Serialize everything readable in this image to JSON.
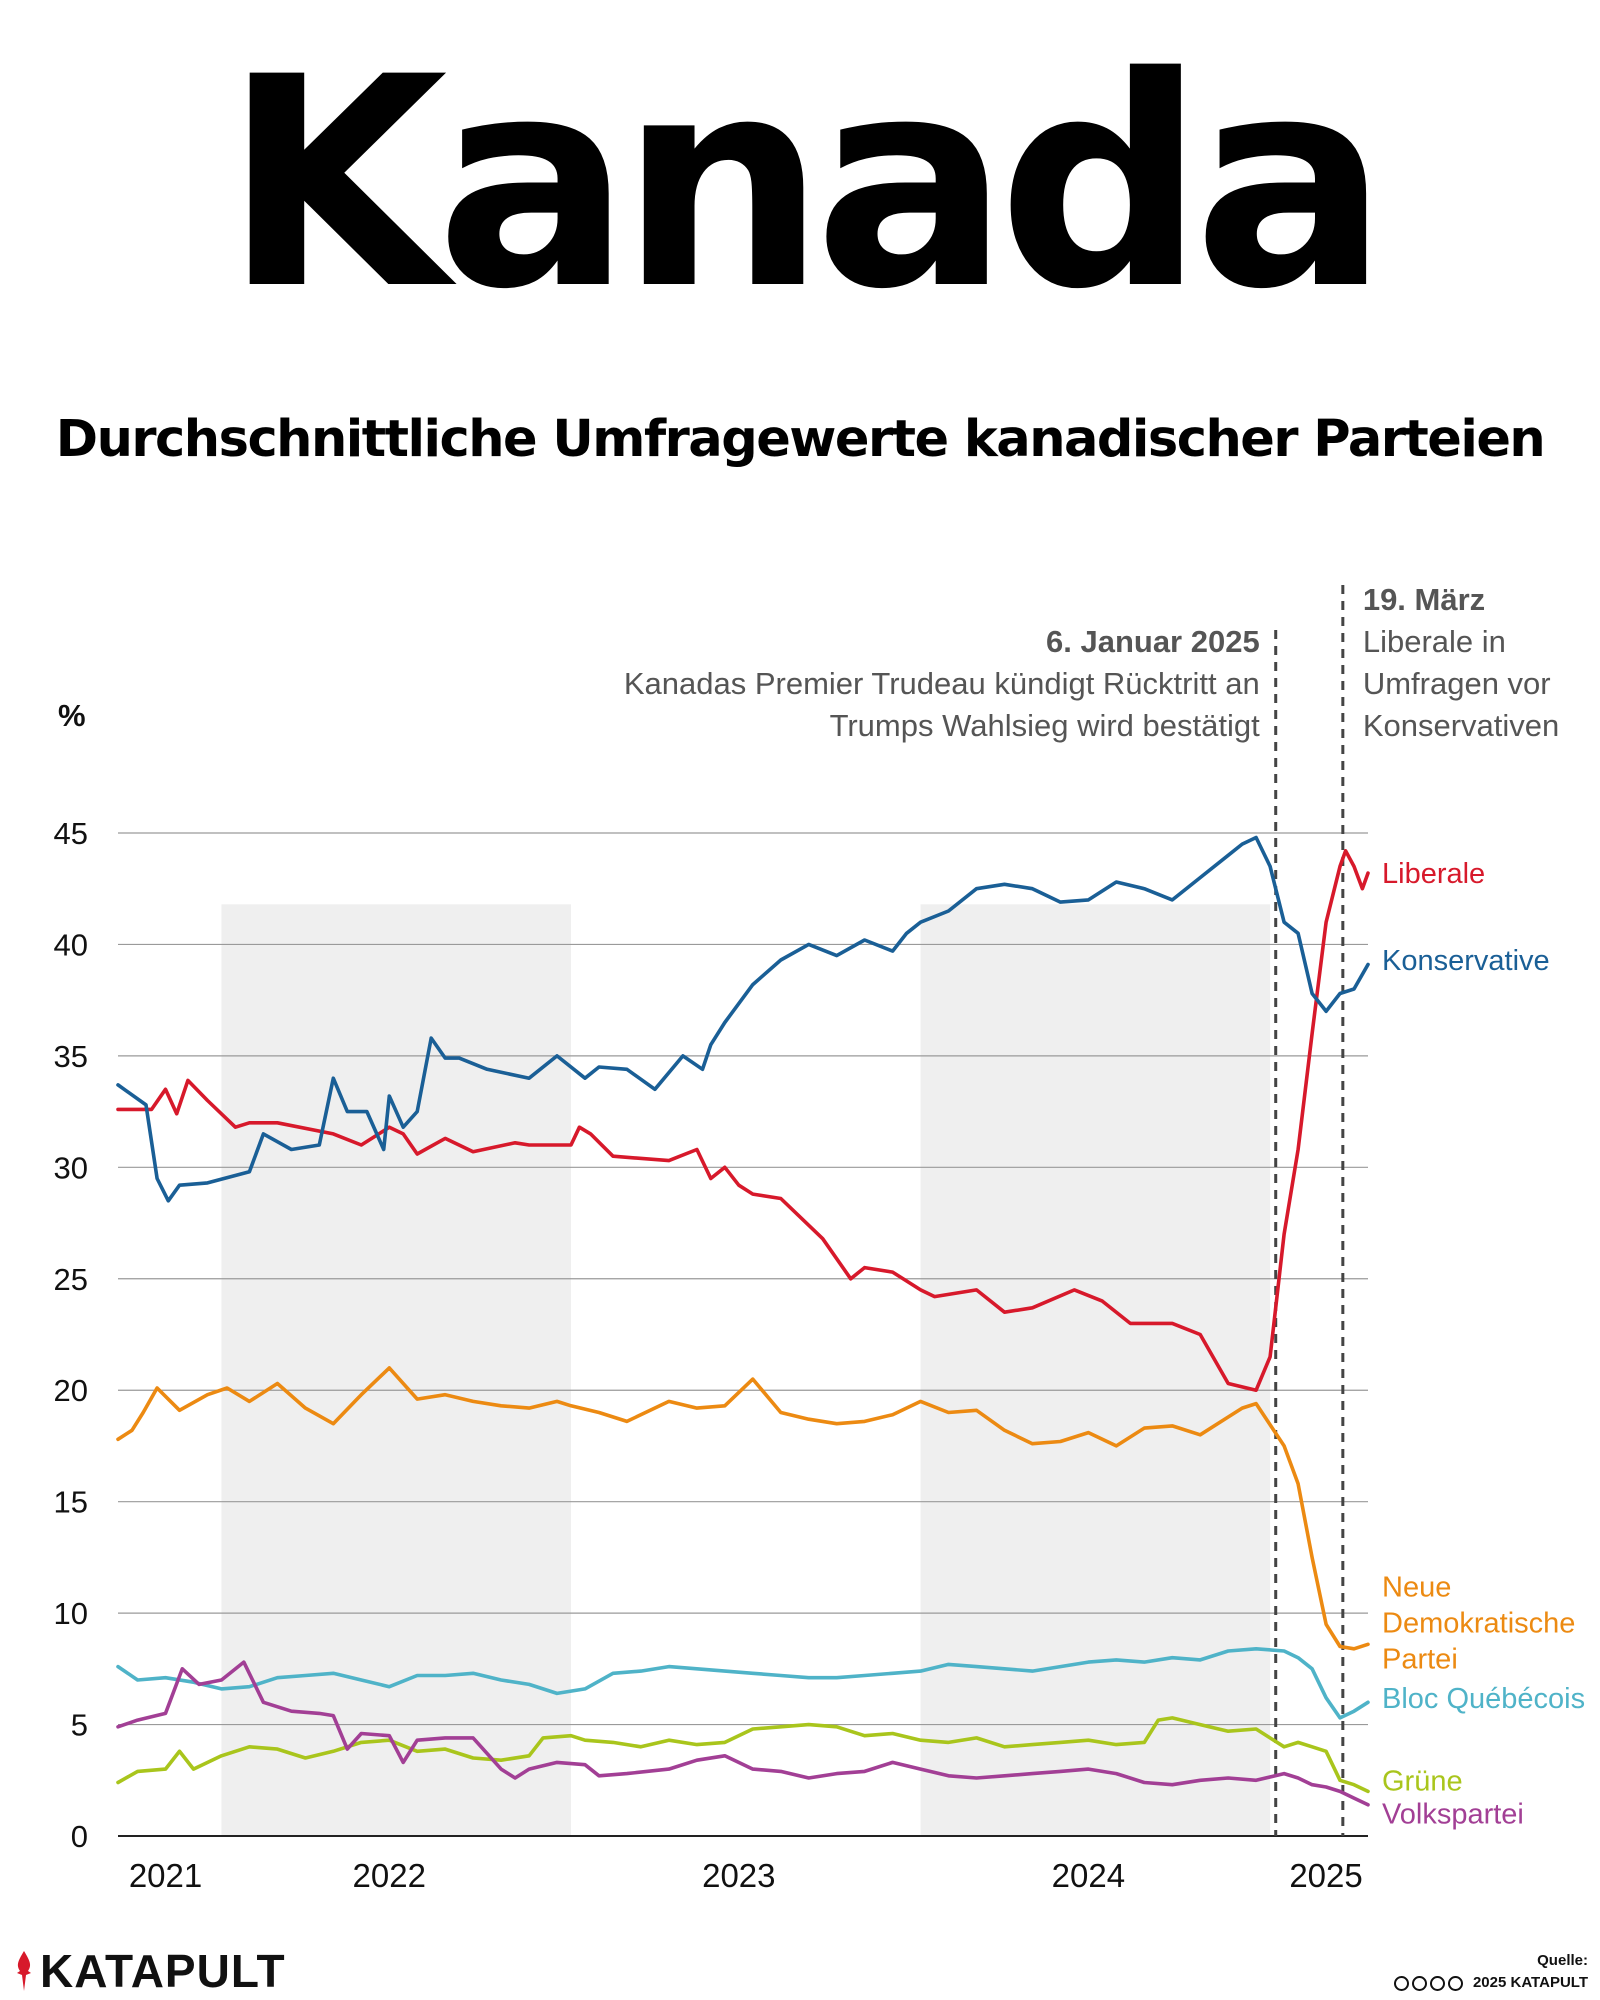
{
  "title": "Kanada",
  "subtitle": "Durchschnittliche Umfragewerte kanadischer Parteien",
  "brand": "KATAPULT",
  "source_label": "Quelle:",
  "copyright": "2025 KATAPULT",
  "chart_data": {
    "type": "line",
    "ylabel": "%",
    "ylim": [
      0,
      45
    ],
    "yticks": [
      0,
      5,
      10,
      15,
      20,
      25,
      30,
      35,
      40,
      45
    ],
    "xlim": [
      2020.83,
      2025.3
    ],
    "xticks": [
      {
        "value": 2021.0,
        "label": "2021"
      },
      {
        "value": 2021.8,
        "label": "2022"
      },
      {
        "value": 2023.05,
        "label": "2023"
      },
      {
        "value": 2024.3,
        "label": "2024"
      },
      {
        "value": 2025.15,
        "label": "2025"
      }
    ],
    "shaded_ranges": [
      [
        2021.2,
        2022.45
      ],
      [
        2023.7,
        2024.95
      ]
    ],
    "shade_top": 41.8,
    "annotations": [
      {
        "x": 2024.97,
        "title": "6. Januar 2025",
        "lines": [
          "Kanadas Premier Trudeau kündigt Rücktritt an",
          "Trumps Wahlsieg wird bestätigt"
        ],
        "align": "right"
      },
      {
        "x": 2025.21,
        "title": "19. März",
        "lines": [
          "Liberale in",
          "Umfragen vor",
          "Konservativen"
        ],
        "align": "left"
      }
    ],
    "series": [
      {
        "name": "Liberale",
        "color": "#d7192b",
        "label_y": 43.2,
        "x": [
          2020.83,
          2020.95,
          2021.0,
          2021.04,
          2021.08,
          2021.15,
          2021.25,
          2021.3,
          2021.4,
          2021.6,
          2021.7,
          2021.8,
          2021.85,
          2021.9,
          2022.0,
          2022.1,
          2022.25,
          2022.3,
          2022.45,
          2022.48,
          2022.52,
          2022.6,
          2022.8,
          2022.9,
          2022.95,
          2023.0,
          2023.05,
          2023.1,
          2023.2,
          2023.35,
          2023.45,
          2023.5,
          2023.6,
          2023.7,
          2023.75,
          2023.9,
          2024.0,
          2024.1,
          2024.25,
          2024.35,
          2024.45,
          2024.6,
          2024.7,
          2024.8,
          2024.9,
          2024.95,
          2025.0,
          2025.05,
          2025.1,
          2025.15,
          2025.2,
          2025.22,
          2025.25,
          2025.28,
          2025.3
        ],
        "values": [
          32.6,
          32.6,
          33.5,
          32.4,
          33.9,
          33.0,
          31.8,
          32.0,
          32.0,
          31.5,
          31.0,
          31.8,
          31.5,
          30.6,
          31.3,
          30.7,
          31.1,
          31.0,
          31.0,
          31.8,
          31.5,
          30.5,
          30.3,
          30.8,
          29.5,
          30.0,
          29.2,
          28.8,
          28.6,
          26.8,
          25.0,
          25.5,
          25.3,
          24.5,
          24.2,
          24.5,
          23.5,
          23.7,
          24.5,
          24.0,
          23.0,
          23.0,
          22.5,
          20.3,
          20.0,
          21.5,
          27.0,
          30.8,
          36.0,
          41.0,
          43.5,
          44.2,
          43.5,
          42.5,
          43.2
        ]
      },
      {
        "name": "Konservative",
        "color": "#1a5f96",
        "label_y": 39.3,
        "x": [
          2020.83,
          2020.93,
          2020.97,
          2021.01,
          2021.05,
          2021.15,
          2021.3,
          2021.35,
          2021.45,
          2021.55,
          2021.6,
          2021.65,
          2021.72,
          2021.78,
          2021.8,
          2021.85,
          2021.9,
          2021.95,
          2022.0,
          2022.05,
          2022.15,
          2022.3,
          2022.4,
          2022.5,
          2022.55,
          2022.65,
          2022.75,
          2022.85,
          2022.92,
          2022.95,
          2023.0,
          2023.1,
          2023.2,
          2023.3,
          2023.4,
          2023.5,
          2023.6,
          2023.65,
          2023.7,
          2023.8,
          2023.9,
          2024.0,
          2024.1,
          2024.2,
          2024.3,
          2024.4,
          2024.5,
          2024.6,
          2024.7,
          2024.8,
          2024.85,
          2024.9,
          2024.95,
          2025.0,
          2025.05,
          2025.1,
          2025.15,
          2025.2,
          2025.25,
          2025.3
        ],
        "values": [
          33.7,
          32.8,
          29.5,
          28.5,
          29.2,
          29.3,
          29.8,
          31.5,
          30.8,
          31.0,
          34.0,
          32.5,
          32.5,
          30.8,
          33.2,
          31.8,
          32.5,
          35.8,
          34.9,
          34.9,
          34.4,
          34.0,
          35.0,
          34.0,
          34.5,
          34.4,
          33.5,
          35.0,
          34.4,
          35.5,
          36.5,
          38.2,
          39.3,
          40.0,
          39.5,
          40.2,
          39.7,
          40.5,
          41.0,
          41.5,
          42.5,
          42.7,
          42.5,
          41.9,
          42.0,
          42.8,
          42.5,
          42.0,
          43.0,
          44.0,
          44.5,
          44.8,
          43.5,
          41.0,
          40.5,
          37.8,
          37.0,
          37.8,
          38.0,
          39.1
        ]
      },
      {
        "name": "Neue Demokratische Partei",
        "color": "#ec8a12",
        "label_y": 11.2,
        "x": [
          2020.83,
          2020.88,
          2020.92,
          2020.97,
          2021.05,
          2021.15,
          2021.22,
          2021.3,
          2021.4,
          2021.5,
          2021.6,
          2021.7,
          2021.8,
          2021.9,
          2022.0,
          2022.1,
          2022.2,
          2022.3,
          2022.4,
          2022.45,
          2022.55,
          2022.65,
          2022.8,
          2022.9,
          2023.0,
          2023.1,
          2023.2,
          2023.3,
          2023.4,
          2023.5,
          2023.6,
          2023.7,
          2023.8,
          2023.9,
          2024.0,
          2024.1,
          2024.2,
          2024.3,
          2024.4,
          2024.5,
          2024.6,
          2024.7,
          2024.8,
          2024.85,
          2024.9,
          2025.0,
          2025.05,
          2025.1,
          2025.15,
          2025.2,
          2025.25,
          2025.3
        ],
        "values": [
          17.8,
          18.2,
          19.0,
          20.1,
          19.1,
          19.8,
          20.1,
          19.5,
          20.3,
          19.2,
          18.5,
          19.8,
          21.0,
          19.6,
          19.8,
          19.5,
          19.3,
          19.2,
          19.5,
          19.3,
          19.0,
          18.6,
          19.5,
          19.2,
          19.3,
          20.5,
          19.0,
          18.7,
          18.5,
          18.6,
          18.9,
          19.5,
          19.0,
          19.1,
          18.2,
          17.6,
          17.7,
          18.1,
          17.5,
          18.3,
          18.4,
          18.0,
          18.8,
          19.2,
          19.4,
          17.5,
          15.8,
          12.5,
          9.5,
          8.5,
          8.4,
          8.6
        ]
      },
      {
        "name": "Bloc Québécois",
        "color": "#4fb3c8",
        "label_y": 6.2,
        "x": [
          2020.83,
          2020.9,
          2021.0,
          2021.1,
          2021.2,
          2021.3,
          2021.4,
          2021.5,
          2021.6,
          2021.7,
          2021.8,
          2021.9,
          2022.0,
          2022.1,
          2022.2,
          2022.3,
          2022.4,
          2022.5,
          2022.6,
          2022.7,
          2022.8,
          2022.9,
          2023.0,
          2023.1,
          2023.2,
          2023.3,
          2023.4,
          2023.5,
          2023.6,
          2023.7,
          2023.8,
          2023.9,
          2024.0,
          2024.1,
          2024.2,
          2024.3,
          2024.4,
          2024.5,
          2024.6,
          2024.7,
          2024.8,
          2024.9,
          2025.0,
          2025.05,
          2025.1,
          2025.15,
          2025.2,
          2025.25,
          2025.3
        ],
        "values": [
          7.6,
          7.0,
          7.1,
          6.9,
          6.6,
          6.7,
          7.1,
          7.2,
          7.3,
          7.0,
          6.7,
          7.2,
          7.2,
          7.3,
          7.0,
          6.8,
          6.4,
          6.6,
          7.3,
          7.4,
          7.6,
          7.5,
          7.4,
          7.3,
          7.2,
          7.1,
          7.1,
          7.2,
          7.3,
          7.4,
          7.7,
          7.6,
          7.5,
          7.4,
          7.6,
          7.8,
          7.9,
          7.8,
          8.0,
          7.9,
          8.3,
          8.4,
          8.3,
          8.0,
          7.5,
          6.2,
          5.3,
          5.6,
          6.0
        ]
      },
      {
        "name": "Grüne",
        "color": "#a9c51c",
        "label_y": 2.5,
        "x": [
          2020.83,
          2020.9,
          2021.0,
          2021.05,
          2021.1,
          2021.2,
          2021.3,
          2021.4,
          2021.5,
          2021.6,
          2021.7,
          2021.8,
          2021.9,
          2022.0,
          2022.1,
          2022.2,
          2022.3,
          2022.35,
          2022.45,
          2022.5,
          2022.6,
          2022.7,
          2022.8,
          2022.9,
          2023.0,
          2023.1,
          2023.2,
          2023.3,
          2023.4,
          2023.5,
          2023.6,
          2023.7,
          2023.8,
          2023.9,
          2024.0,
          2024.1,
          2024.2,
          2024.3,
          2024.4,
          2024.5,
          2024.55,
          2024.6,
          2024.7,
          2024.8,
          2024.9,
          2025.0,
          2025.05,
          2025.1,
          2025.15,
          2025.2,
          2025.25,
          2025.3
        ],
        "values": [
          2.4,
          2.9,
          3.0,
          3.8,
          3.0,
          3.6,
          4.0,
          3.9,
          3.5,
          3.8,
          4.2,
          4.3,
          3.8,
          3.9,
          3.5,
          3.4,
          3.6,
          4.4,
          4.5,
          4.3,
          4.2,
          4.0,
          4.3,
          4.1,
          4.2,
          4.8,
          4.9,
          5.0,
          4.9,
          4.5,
          4.6,
          4.3,
          4.2,
          4.4,
          4.0,
          4.1,
          4.2,
          4.3,
          4.1,
          4.2,
          5.2,
          5.3,
          5.0,
          4.7,
          4.8,
          4.0,
          4.2,
          4.0,
          3.8,
          2.5,
          2.3,
          2.0
        ]
      },
      {
        "name": "Volkspartei",
        "color": "#a23f95",
        "label_y": 1.0,
        "x": [
          2020.83,
          2020.9,
          2021.0,
          2021.06,
          2021.12,
          2021.2,
          2021.28,
          2021.35,
          2021.45,
          2021.55,
          2021.6,
          2021.65,
          2021.7,
          2021.8,
          2021.85,
          2021.9,
          2022.0,
          2022.1,
          2022.2,
          2022.25,
          2022.3,
          2022.4,
          2022.5,
          2022.55,
          2022.65,
          2022.8,
          2022.9,
          2023.0,
          2023.1,
          2023.2,
          2023.3,
          2023.4,
          2023.5,
          2023.6,
          2023.7,
          2023.8,
          2023.9,
          2024.0,
          2024.1,
          2024.2,
          2024.3,
          2024.4,
          2024.5,
          2024.6,
          2024.7,
          2024.8,
          2024.9,
          2025.0,
          2025.05,
          2025.1,
          2025.15,
          2025.2,
          2025.25,
          2025.3
        ],
        "values": [
          4.9,
          5.2,
          5.5,
          7.5,
          6.8,
          7.0,
          7.8,
          6.0,
          5.6,
          5.5,
          5.4,
          3.9,
          4.6,
          4.5,
          3.3,
          4.3,
          4.4,
          4.4,
          3.0,
          2.6,
          3.0,
          3.3,
          3.2,
          2.7,
          2.8,
          3.0,
          3.4,
          3.6,
          3.0,
          2.9,
          2.6,
          2.8,
          2.9,
          3.3,
          3.0,
          2.7,
          2.6,
          2.7,
          2.8,
          2.9,
          3.0,
          2.8,
          2.4,
          2.3,
          2.5,
          2.6,
          2.5,
          2.8,
          2.6,
          2.3,
          2.2,
          2.0,
          1.7,
          1.4
        ]
      }
    ]
  }
}
